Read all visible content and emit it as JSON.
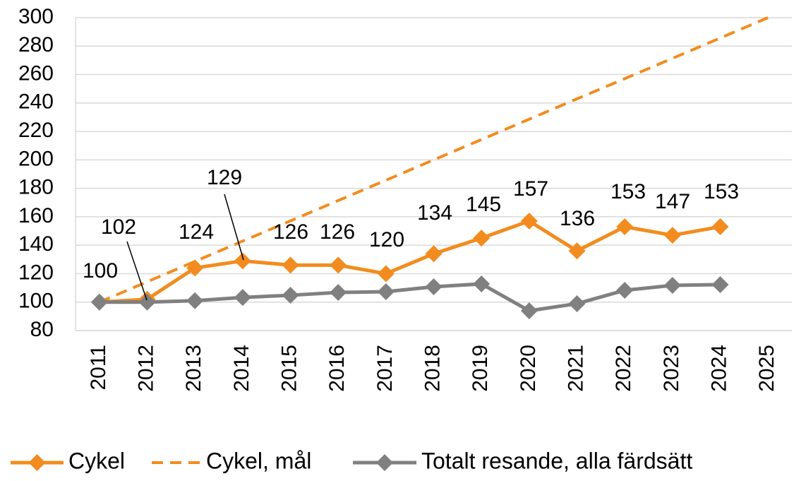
{
  "chart_data": {
    "type": "line",
    "categories": [
      "2011",
      "2012",
      "2013",
      "2014",
      "2015",
      "2016",
      "2017",
      "2018",
      "2019",
      "2020",
      "2021",
      "2022",
      "2023",
      "2024",
      "2025"
    ],
    "series": [
      {
        "name": "Cykel",
        "color": "#f28c1e",
        "dash": false,
        "marker": true,
        "labels": true,
        "values": [
          100,
          102,
          124,
          129,
          126,
          126,
          120,
          134,
          145,
          157,
          136,
          153,
          147,
          153,
          null
        ]
      },
      {
        "name": "Cykel, mål",
        "color": "#f28c1e",
        "dash": true,
        "marker": false,
        "labels": false,
        "values": [
          100,
          114.3,
          128.6,
          142.9,
          157.1,
          171.4,
          185.7,
          200,
          214.3,
          228.6,
          242.9,
          257.1,
          271.4,
          285.7,
          300
        ]
      },
      {
        "name": "Totalt resande, alla färdsätt",
        "color": "#808080",
        "dash": false,
        "marker": true,
        "labels": false,
        "values": [
          100,
          100,
          101,
          103.3,
          104.8,
          106.8,
          107.3,
          110.8,
          112.8,
          93.9,
          98.9,
          108.3,
          111.8,
          112.3,
          null
        ]
      }
    ],
    "ylim": [
      80,
      300
    ],
    "yticks": [
      80,
      100,
      120,
      140,
      160,
      180,
      200,
      220,
      240,
      260,
      280,
      300
    ],
    "grid": true,
    "legend": "bottom"
  }
}
